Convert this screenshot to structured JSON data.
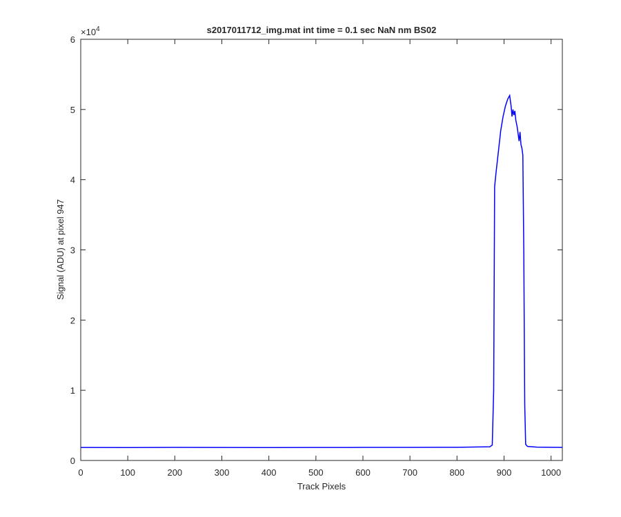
{
  "chart_data": {
    "type": "line",
    "title": "s2017011712_img.mat int time = 0.1 sec  NaN nm BS02",
    "x_label": "Track Pixels",
    "y_label": "Signal (ADU) at pixel 947",
    "y_scale_label": {
      "base": "×10",
      "exponent": "4"
    },
    "xlim": [
      0,
      1024
    ],
    "ylim": [
      0,
      60000
    ],
    "xticks": [
      0,
      100,
      200,
      300,
      400,
      500,
      600,
      700,
      800,
      900,
      1000
    ],
    "yticks": [
      {
        "value": 0,
        "label": "0"
      },
      {
        "value": 10000,
        "label": "1"
      },
      {
        "value": 20000,
        "label": "2"
      },
      {
        "value": 30000,
        "label": "3"
      },
      {
        "value": 40000,
        "label": "4"
      },
      {
        "value": 50000,
        "label": "5"
      },
      {
        "value": 60000,
        "label": "6"
      }
    ],
    "grid": false,
    "series": [
      {
        "color": "#0000ff",
        "x": [
          0,
          100,
          200,
          300,
          400,
          500,
          600,
          700,
          800,
          870,
          875,
          878,
          880,
          883,
          888,
          893,
          898,
          903,
          908,
          912,
          915,
          917,
          919,
          921,
          923,
          925,
          928,
          930,
          932,
          934,
          936,
          938,
          940,
          942,
          944,
          946,
          950,
          970,
          1000,
          1024
        ],
        "values": [
          1850,
          1840,
          1860,
          1850,
          1840,
          1850,
          1860,
          1870,
          1880,
          1950,
          2200,
          10000,
          39000,
          41000,
          44000,
          47000,
          49000,
          50500,
          51500,
          52000,
          50500,
          49000,
          50000,
          49200,
          49800,
          48500,
          47500,
          46500,
          45500,
          46800,
          45000,
          44500,
          43500,
          30000,
          8000,
          2300,
          2000,
          1900,
          1880,
          1870
        ]
      }
    ]
  }
}
